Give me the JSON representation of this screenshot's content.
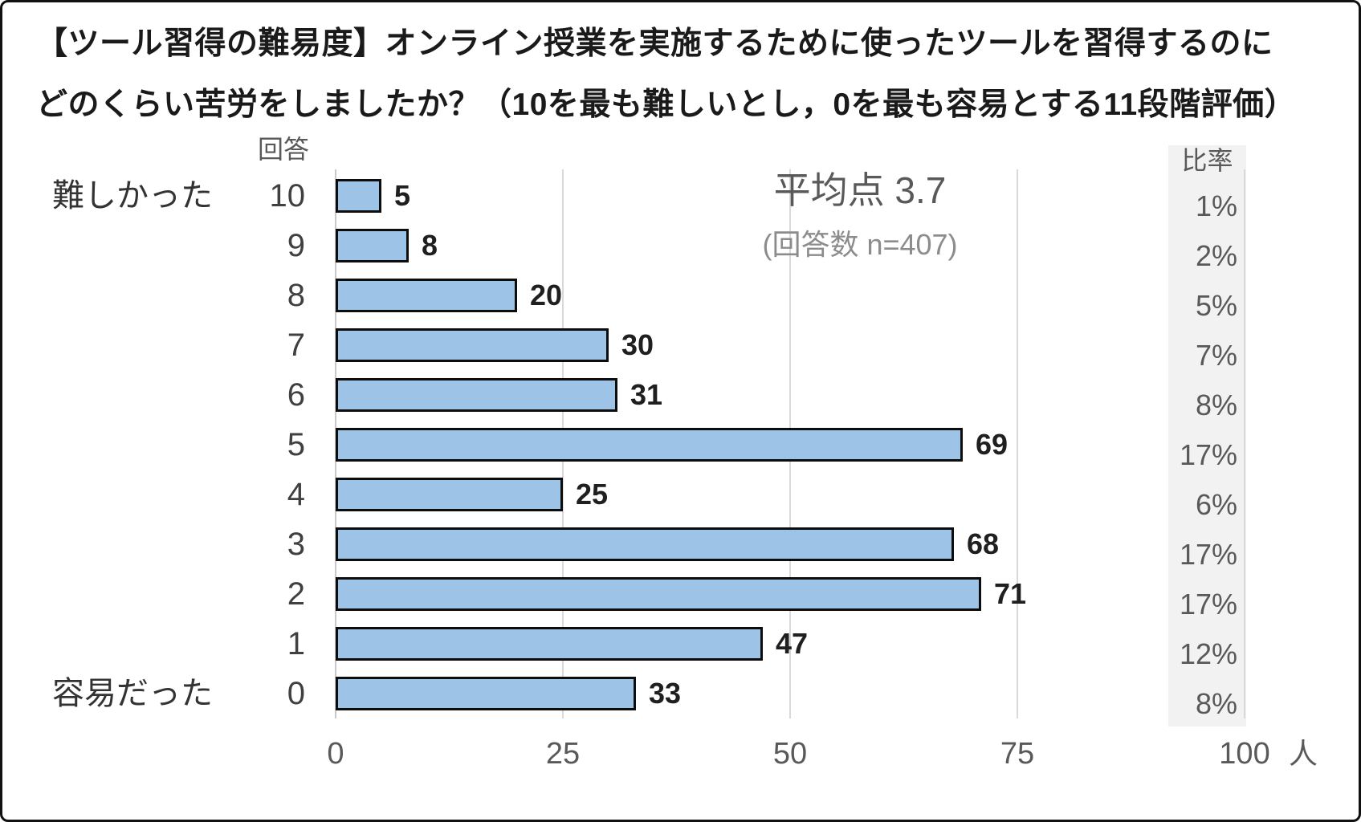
{
  "title": {
    "line1": "【ツール習得の難易度】オンライン授業を実施するために使ったツールを習得するのに",
    "line2": "どのくらい苦労をしましたか？（10を最も難しいとし，0を最も容易とする11段階評価）"
  },
  "chart_data": {
    "type": "bar",
    "orientation": "horizontal",
    "title": "【ツール習得の難易度】オンライン授業を実施するために使ったツールを習得するのにどのくらい苦労をしましたか？（10を最も難しいとし，0を最も容易とする11段階評価）",
    "y_axis_header": "回答",
    "percent_header": "比率",
    "categories": [
      "10",
      "9",
      "8",
      "7",
      "6",
      "5",
      "4",
      "3",
      "2",
      "1",
      "0"
    ],
    "values": [
      5,
      8,
      20,
      30,
      31,
      69,
      25,
      68,
      71,
      47,
      33
    ],
    "percentages": [
      "1%",
      "2%",
      "5%",
      "7%",
      "8%",
      "17%",
      "6%",
      "17%",
      "17%",
      "12%",
      "8%"
    ],
    "x_ticks": [
      0,
      25,
      50,
      75,
      100
    ],
    "xlim": [
      0,
      100
    ],
    "x_unit": "人",
    "grid": "vertical",
    "legend": "none",
    "left_labels": {
      "top": "難しかった",
      "bottom": "容易だった"
    },
    "annotations": {
      "mean_label": "平均点 3.7",
      "n_label": "(回答数 n=407)"
    },
    "colors": {
      "bar_fill": "#9DC3E6",
      "bar_border": "#0d0d0d",
      "grid": "#d9d9d9",
      "axis": "#c9c9c9",
      "percent_bg": "#f2f2f2"
    }
  }
}
